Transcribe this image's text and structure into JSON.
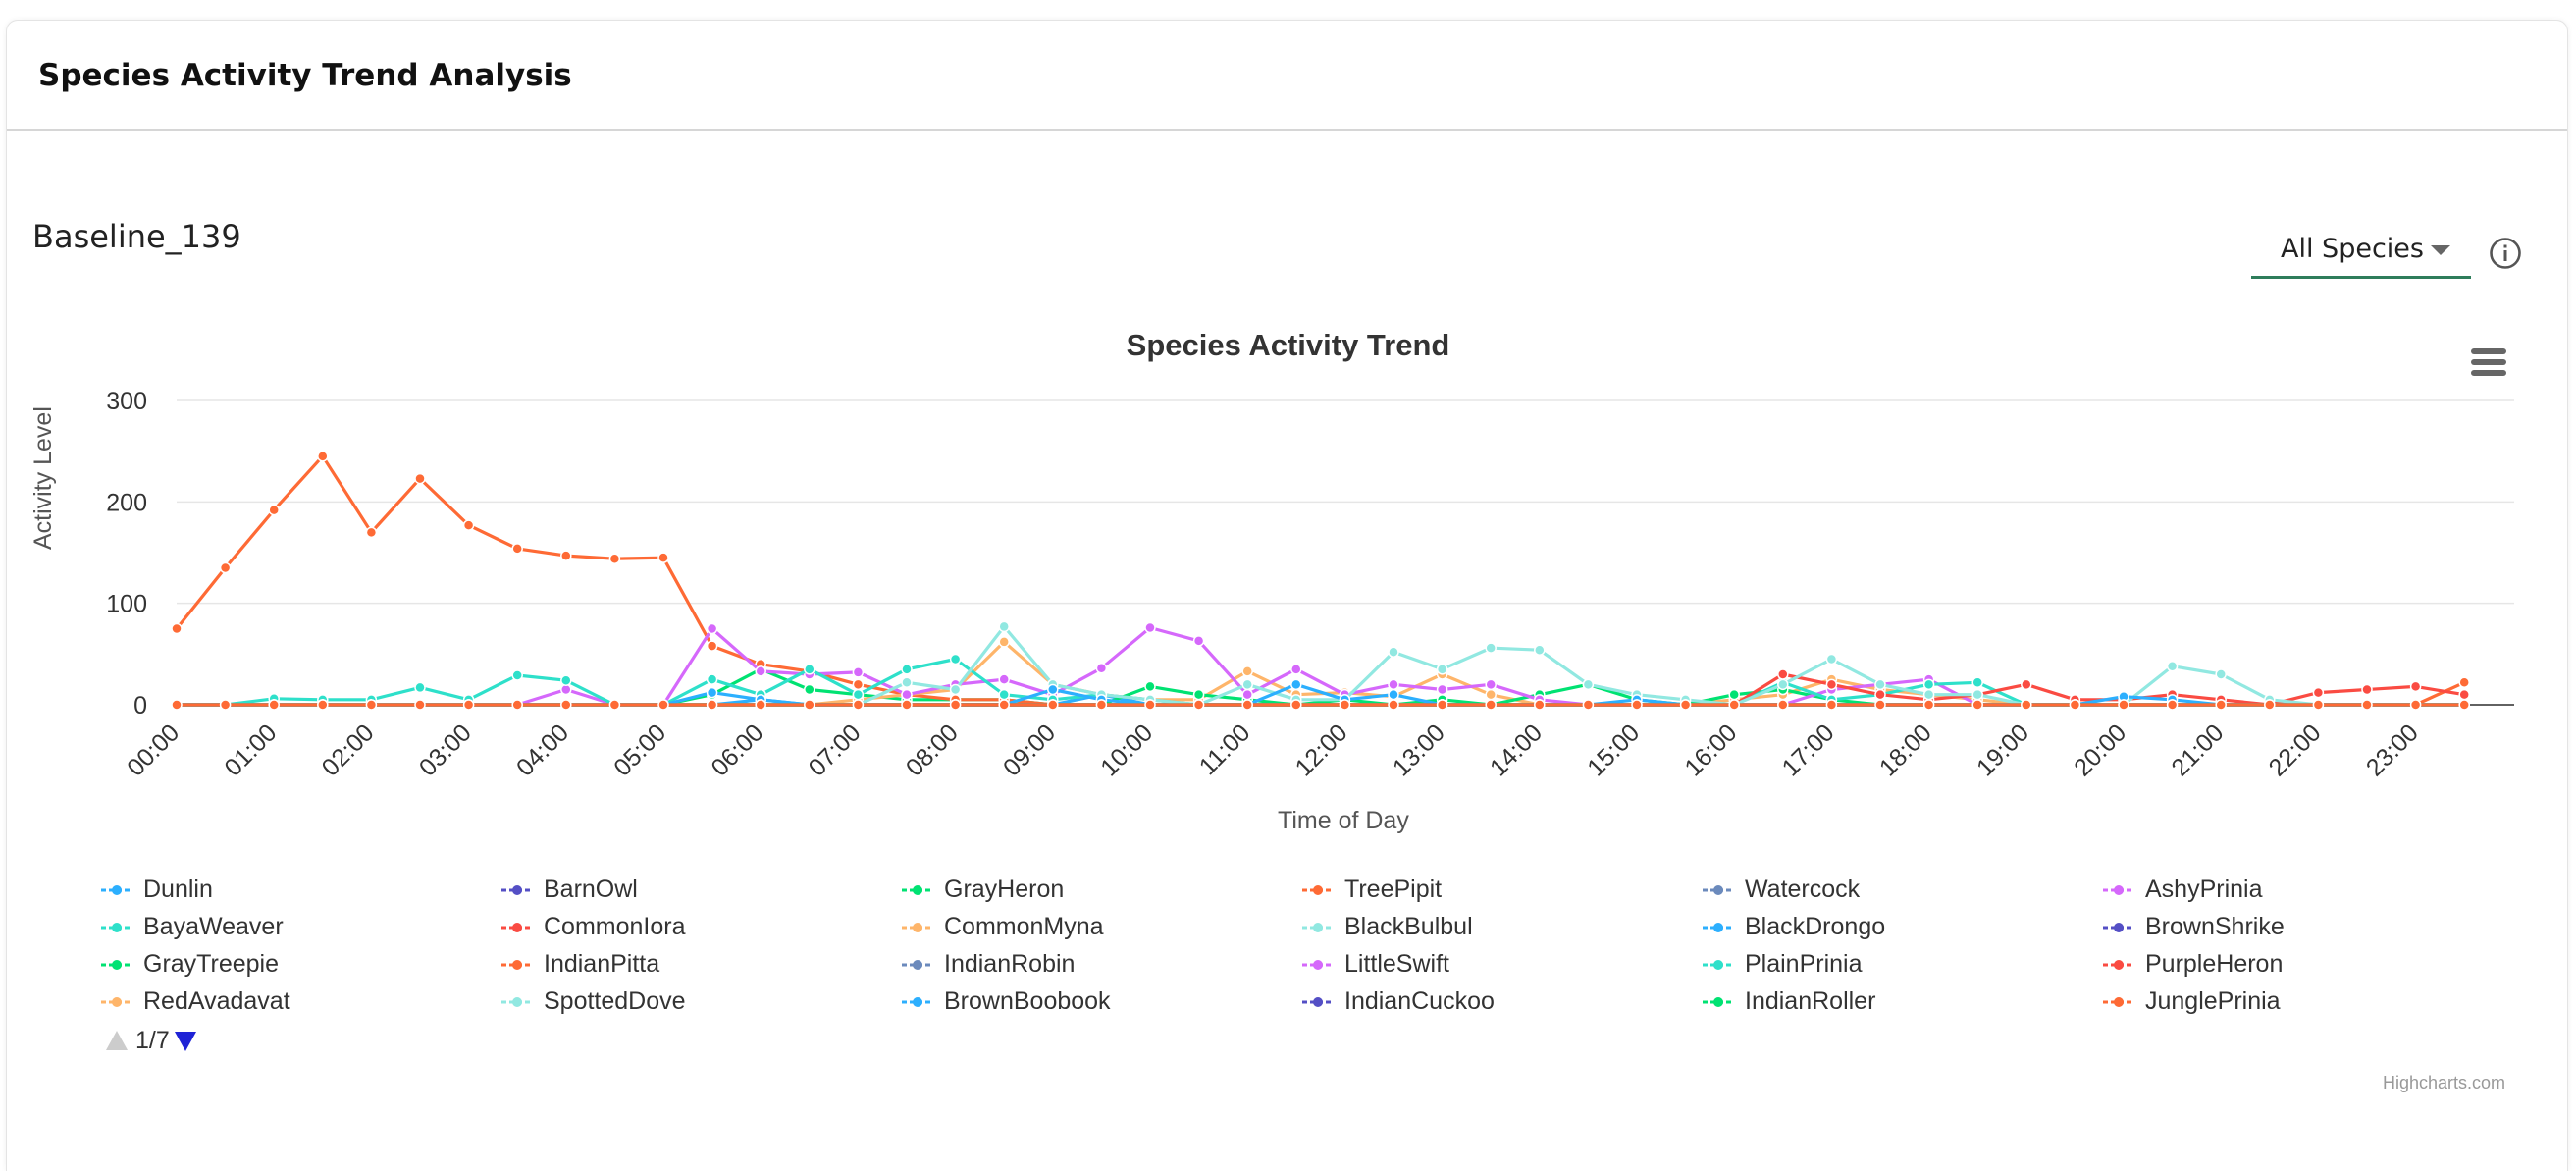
{
  "header": {
    "title": "Species Activity Trend Analysis"
  },
  "baseline": {
    "label": "Baseline_139"
  },
  "filter": {
    "selected": "All Species"
  },
  "icons": {
    "info": "info-icon",
    "menu": "hamburger-menu-icon",
    "dropdown": "chevron-down-icon"
  },
  "pager": {
    "text": "1/7"
  },
  "credits": "Highcharts.com",
  "chart_data": {
    "type": "line",
    "title": "Species Activity Trend",
    "xlabel": "Time of Day",
    "ylabel": "Activity Level",
    "ylim": [
      0,
      300
    ],
    "yticks": [
      "0",
      "100",
      "200",
      "300"
    ],
    "xticks": [
      "00:00",
      "01:00",
      "02:00",
      "03:00",
      "04:00",
      "05:00",
      "06:00",
      "07:00",
      "08:00",
      "09:00",
      "10:00",
      "11:00",
      "12:00",
      "13:00",
      "14:00",
      "15:00",
      "16:00",
      "17:00",
      "18:00",
      "19:00",
      "20:00",
      "21:00",
      "22:00",
      "23:00"
    ],
    "x": [
      "00:00",
      "00:30",
      "01:00",
      "01:30",
      "02:00",
      "02:30",
      "03:00",
      "03:30",
      "04:00",
      "04:30",
      "05:00",
      "05:30",
      "06:00",
      "06:30",
      "07:00",
      "07:30",
      "08:00",
      "08:30",
      "09:00",
      "09:30",
      "10:00",
      "10:30",
      "11:00",
      "11:30",
      "12:00",
      "12:30",
      "13:00",
      "13:30",
      "14:00",
      "14:30",
      "15:00",
      "15:30",
      "16:00",
      "16:30",
      "17:00",
      "17:30",
      "18:00",
      "18:30",
      "19:00",
      "19:30",
      "20:00",
      "20:30",
      "21:00",
      "21:30",
      "22:00",
      "22:30",
      "23:00",
      "23:30"
    ],
    "grid": true,
    "legend_position": "bottom",
    "series": [
      {
        "name": "Dunlin",
        "color": "#2caffe",
        "values": [
          0,
          0,
          0,
          0,
          0,
          0,
          0,
          0,
          0,
          0,
          0,
          0,
          5,
          0,
          0,
          0,
          0,
          0,
          0,
          10,
          0,
          0,
          0,
          0,
          0,
          0,
          0,
          0,
          0,
          0,
          0,
          0,
          0,
          0,
          0,
          0,
          0,
          0,
          0,
          0,
          0,
          0,
          0,
          0,
          0,
          0,
          0,
          0
        ]
      },
      {
        "name": "BarnOwl",
        "color": "#544fc5",
        "values": [
          0,
          0,
          0,
          0,
          0,
          0,
          0,
          0,
          0,
          0,
          0,
          0,
          0,
          0,
          0,
          0,
          0,
          0,
          0,
          0,
          0,
          0,
          0,
          0,
          0,
          0,
          0,
          0,
          0,
          0,
          0,
          0,
          0,
          0,
          0,
          0,
          0,
          0,
          0,
          0,
          0,
          0,
          0,
          0,
          0,
          0,
          0,
          0
        ]
      },
      {
        "name": "GrayHeron",
        "color": "#00e272",
        "values": [
          0,
          0,
          0,
          0,
          0,
          0,
          0,
          0,
          0,
          0,
          0,
          10,
          35,
          15,
          10,
          5,
          5,
          5,
          0,
          0,
          0,
          0,
          0,
          0,
          0,
          0,
          0,
          0,
          0,
          0,
          0,
          0,
          0,
          0,
          0,
          0,
          0,
          0,
          0,
          0,
          0,
          0,
          0,
          0,
          0,
          0,
          0,
          0
        ]
      },
      {
        "name": "TreePipit",
        "color": "#fe6a35",
        "values": [
          75,
          135,
          192,
          245,
          170,
          223,
          177,
          154,
          147,
          144,
          145,
          58,
          40,
          33,
          20,
          10,
          5,
          5,
          0,
          0,
          0,
          0,
          0,
          0,
          0,
          0,
          0,
          0,
          0,
          0,
          0,
          0,
          0,
          0,
          0,
          0,
          0,
          0,
          0,
          0,
          0,
          0,
          0,
          0,
          0,
          0,
          0,
          0
        ]
      },
      {
        "name": "Watercock",
        "color": "#6b8abc",
        "values": [
          0,
          0,
          0,
          0,
          0,
          0,
          0,
          0,
          0,
          0,
          0,
          0,
          0,
          0,
          0,
          0,
          0,
          0,
          0,
          0,
          0,
          0,
          0,
          0,
          0,
          0,
          0,
          0,
          0,
          0,
          0,
          0,
          0,
          0,
          0,
          0,
          0,
          0,
          0,
          0,
          0,
          0,
          0,
          0,
          0,
          0,
          0,
          0
        ]
      },
      {
        "name": "AshyPrinia",
        "color": "#d568fb",
        "values": [
          0,
          0,
          0,
          0,
          0,
          0,
          0,
          0,
          0,
          0,
          0,
          0,
          0,
          0,
          0,
          0,
          0,
          0,
          0,
          0,
          0,
          0,
          0,
          0,
          0,
          0,
          0,
          0,
          0,
          0,
          0,
          0,
          0,
          0,
          0,
          0,
          0,
          0,
          0,
          0,
          0,
          0,
          0,
          0,
          0,
          0,
          0,
          0
        ]
      },
      {
        "name": "BayaWeaver",
        "color": "#2ee0ca",
        "values": [
          0,
          0,
          0,
          0,
          0,
          0,
          0,
          0,
          0,
          0,
          0,
          0,
          0,
          0,
          0,
          0,
          0,
          0,
          0,
          0,
          0,
          0,
          0,
          0,
          0,
          0,
          0,
          0,
          0,
          0,
          0,
          0,
          0,
          0,
          0,
          0,
          0,
          0,
          0,
          0,
          0,
          0,
          0,
          0,
          0,
          0,
          0,
          0
        ]
      },
      {
        "name": "CommonIora",
        "color": "#fa4b42",
        "values": [
          0,
          0,
          0,
          0,
          0,
          0,
          0,
          0,
          0,
          0,
          0,
          0,
          0,
          0,
          0,
          0,
          0,
          0,
          0,
          0,
          0,
          0,
          0,
          0,
          0,
          0,
          0,
          0,
          0,
          0,
          0,
          0,
          0,
          0,
          0,
          0,
          0,
          0,
          0,
          0,
          0,
          0,
          0,
          0,
          0,
          0,
          0,
          0
        ]
      },
      {
        "name": "CommonMyna",
        "color": "#feb56a",
        "values": [
          0,
          0,
          0,
          0,
          0,
          0,
          0,
          0,
          0,
          0,
          0,
          0,
          0,
          0,
          5,
          10,
          15,
          62,
          20,
          10,
          5,
          5,
          33,
          10,
          12,
          8,
          30,
          10,
          0,
          0,
          0,
          0,
          5,
          10,
          25,
          15,
          10,
          5,
          0,
          0,
          0,
          0,
          0,
          0,
          0,
          0,
          0,
          0
        ]
      },
      {
        "name": "BlackBulbul",
        "color": "#91e8e1",
        "values": [
          0,
          0,
          0,
          0,
          0,
          0,
          0,
          0,
          0,
          0,
          0,
          0,
          0,
          0,
          0,
          0,
          0,
          0,
          0,
          0,
          0,
          0,
          0,
          0,
          0,
          0,
          0,
          0,
          0,
          0,
          0,
          0,
          0,
          0,
          0,
          0,
          0,
          0,
          0,
          0,
          0,
          0,
          0,
          0,
          0,
          0,
          0,
          0
        ]
      },
      {
        "name": "BlackDrongo",
        "color": "#2caffe",
        "values": [
          0,
          0,
          0,
          0,
          0,
          0,
          0,
          0,
          0,
          0,
          0,
          0,
          0,
          0,
          0,
          0,
          0,
          0,
          0,
          0,
          0,
          0,
          0,
          0,
          0,
          0,
          0,
          0,
          0,
          0,
          0,
          0,
          0,
          0,
          0,
          0,
          0,
          0,
          0,
          0,
          0,
          0,
          0,
          0,
          0,
          0,
          0,
          0
        ]
      },
      {
        "name": "BrownShrike",
        "color": "#544fc5",
        "values": [
          0,
          0,
          0,
          0,
          0,
          0,
          0,
          0,
          0,
          0,
          0,
          0,
          0,
          0,
          0,
          0,
          0,
          0,
          0,
          0,
          0,
          0,
          0,
          0,
          0,
          0,
          0,
          0,
          0,
          0,
          0,
          0,
          0,
          0,
          0,
          0,
          0,
          0,
          0,
          0,
          0,
          0,
          0,
          0,
          0,
          0,
          0,
          0
        ]
      },
      {
        "name": "GrayTreepie",
        "color": "#00e272",
        "values": [
          0,
          0,
          0,
          0,
          0,
          0,
          0,
          0,
          0,
          0,
          0,
          0,
          0,
          0,
          0,
          0,
          0,
          0,
          0,
          0,
          18,
          10,
          5,
          0,
          5,
          0,
          5,
          0,
          10,
          20,
          5,
          0,
          10,
          15,
          5,
          0,
          0,
          0,
          0,
          0,
          0,
          0,
          0,
          0,
          0,
          0,
          0,
          0
        ]
      },
      {
        "name": "IndianPitta",
        "color": "#fe6a35",
        "values": [
          0,
          0,
          0,
          0,
          0,
          0,
          0,
          0,
          0,
          0,
          0,
          0,
          0,
          0,
          0,
          0,
          0,
          0,
          0,
          0,
          0,
          0,
          0,
          0,
          0,
          0,
          0,
          0,
          0,
          0,
          0,
          0,
          0,
          0,
          0,
          0,
          0,
          0,
          0,
          0,
          0,
          0,
          0,
          0,
          0,
          0,
          0,
          22
        ]
      },
      {
        "name": "IndianRobin",
        "color": "#6b8abc",
        "values": [
          0,
          0,
          0,
          0,
          0,
          0,
          0,
          0,
          0,
          0,
          0,
          0,
          0,
          0,
          0,
          0,
          0,
          0,
          0,
          0,
          0,
          0,
          0,
          0,
          0,
          0,
          0,
          0,
          0,
          0,
          0,
          0,
          0,
          0,
          0,
          0,
          0,
          0,
          0,
          0,
          0,
          0,
          0,
          0,
          0,
          0,
          0,
          0
        ]
      },
      {
        "name": "LittleSwift",
        "color": "#d568fb",
        "values": [
          0,
          0,
          0,
          0,
          0,
          0,
          0,
          0,
          15,
          0,
          0,
          75,
          33,
          30,
          32,
          10,
          20,
          25,
          10,
          36,
          76,
          63,
          10,
          35,
          10,
          20,
          15,
          20,
          5,
          0,
          0,
          0,
          0,
          0,
          15,
          20,
          25,
          0,
          0,
          0,
          0,
          0,
          0,
          0,
          0,
          0,
          0,
          0
        ]
      },
      {
        "name": "PlainPrinia",
        "color": "#2ee0ca",
        "values": [
          0,
          0,
          6,
          5,
          5,
          17,
          5,
          29,
          24,
          0,
          0,
          25,
          10,
          35,
          10,
          35,
          45,
          10,
          5,
          10,
          5,
          0,
          0,
          0,
          0,
          0,
          0,
          0,
          0,
          0,
          0,
          0,
          0,
          22,
          5,
          10,
          20,
          22,
          0,
          0,
          0,
          0,
          0,
          0,
          0,
          0,
          0,
          0
        ]
      },
      {
        "name": "PurpleHeron",
        "color": "#fa4b42",
        "values": [
          0,
          0,
          0,
          0,
          0,
          0,
          0,
          0,
          0,
          0,
          0,
          0,
          0,
          0,
          0,
          0,
          0,
          0,
          0,
          0,
          0,
          0,
          0,
          0,
          0,
          0,
          0,
          0,
          0,
          0,
          0,
          0,
          0,
          30,
          20,
          10,
          5,
          10,
          20,
          5,
          5,
          10,
          5,
          0,
          12,
          15,
          18,
          10
        ]
      },
      {
        "name": "RedAvadavat",
        "color": "#feb56a",
        "values": [
          0,
          0,
          0,
          0,
          0,
          0,
          0,
          0,
          0,
          0,
          0,
          0,
          0,
          0,
          0,
          0,
          0,
          0,
          0,
          0,
          0,
          0,
          0,
          0,
          0,
          0,
          0,
          0,
          0,
          0,
          0,
          0,
          0,
          0,
          0,
          0,
          0,
          0,
          0,
          0,
          0,
          0,
          0,
          0,
          0,
          0,
          0,
          0
        ]
      },
      {
        "name": "SpottedDove",
        "color": "#91e8e1",
        "values": [
          0,
          0,
          0,
          0,
          0,
          0,
          0,
          0,
          0,
          0,
          0,
          0,
          0,
          0,
          0,
          22,
          15,
          77,
          20,
          10,
          5,
          0,
          20,
          5,
          5,
          52,
          35,
          56,
          54,
          20,
          10,
          5,
          0,
          20,
          45,
          20,
          10,
          10,
          0,
          0,
          0,
          38,
          30,
          5,
          0,
          0,
          0,
          0
        ]
      },
      {
        "name": "BrownBoobook",
        "color": "#2caffe",
        "values": [
          0,
          0,
          0,
          0,
          0,
          0,
          0,
          0,
          0,
          0,
          0,
          12,
          5,
          0,
          0,
          0,
          0,
          0,
          15,
          5,
          0,
          0,
          0,
          20,
          5,
          10,
          0,
          0,
          0,
          0,
          5,
          0,
          0,
          0,
          0,
          0,
          0,
          0,
          0,
          0,
          8,
          5,
          0,
          0,
          0,
          0,
          0,
          0
        ]
      },
      {
        "name": "IndianCuckoo",
        "color": "#544fc5",
        "values": [
          0,
          0,
          0,
          0,
          0,
          0,
          0,
          0,
          0,
          0,
          0,
          0,
          0,
          0,
          0,
          0,
          0,
          0,
          0,
          0,
          0,
          0,
          0,
          0,
          0,
          0,
          0,
          0,
          0,
          0,
          0,
          0,
          0,
          0,
          0,
          0,
          0,
          0,
          0,
          0,
          0,
          0,
          0,
          0,
          0,
          0,
          0,
          0
        ]
      },
      {
        "name": "IndianRoller",
        "color": "#00e272",
        "values": [
          0,
          0,
          0,
          0,
          0,
          0,
          0,
          0,
          0,
          0,
          0,
          0,
          0,
          0,
          0,
          0,
          0,
          0,
          0,
          0,
          0,
          0,
          0,
          0,
          0,
          0,
          0,
          0,
          0,
          0,
          0,
          0,
          0,
          0,
          0,
          0,
          0,
          0,
          0,
          0,
          0,
          0,
          0,
          0,
          0,
          0,
          0,
          0
        ]
      },
      {
        "name": "JunglePrinia",
        "color": "#fe6a35",
        "values": [
          0,
          0,
          0,
          0,
          0,
          0,
          0,
          0,
          0,
          0,
          0,
          0,
          0,
          0,
          0,
          0,
          0,
          0,
          0,
          0,
          0,
          0,
          0,
          0,
          0,
          0,
          0,
          0,
          0,
          0,
          0,
          0,
          0,
          0,
          0,
          0,
          0,
          0,
          0,
          0,
          0,
          0,
          0,
          0,
          0,
          0,
          0,
          0
        ]
      }
    ]
  }
}
